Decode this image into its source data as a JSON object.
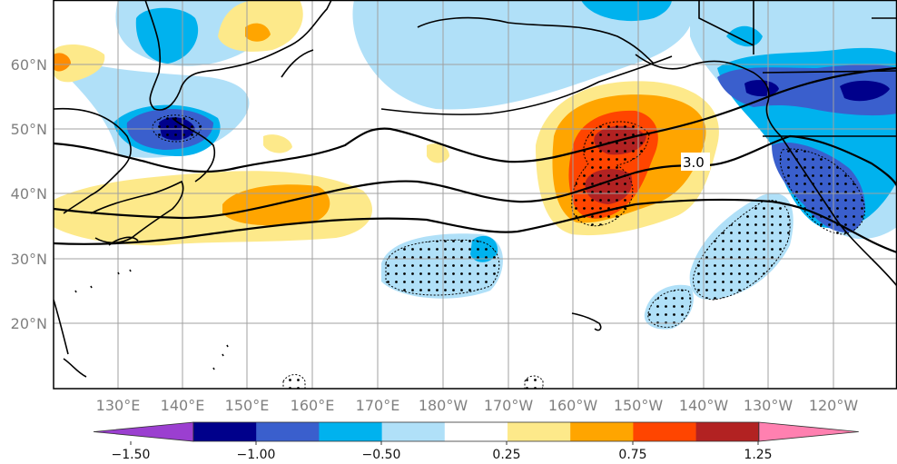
{
  "map": {
    "lon_labels": [
      "130°E",
      "140°E",
      "150°E",
      "160°E",
      "170°E",
      "180°W",
      "170°W",
      "160°W",
      "150°W",
      "140°W",
      "130°W",
      "120°W"
    ],
    "lat_labels": [
      "60°N",
      "50°N",
      "40°N",
      "30°N",
      "20°N"
    ],
    "contour_label": "3.0"
  },
  "colorbar": {
    "colors": [
      "#9b3fd0",
      "#00008b",
      "#3a5fcd",
      "#00b2ee",
      "#b0e0f8",
      "#ffffff",
      "#fde98a",
      "#ffa500",
      "#ff4500",
      "#b22222",
      "#ff80b0"
    ],
    "tick_labels": [
      "−1.50",
      "−1.00",
      "−0.50",
      "0.25",
      "0.75",
      "1.25"
    ]
  }
}
